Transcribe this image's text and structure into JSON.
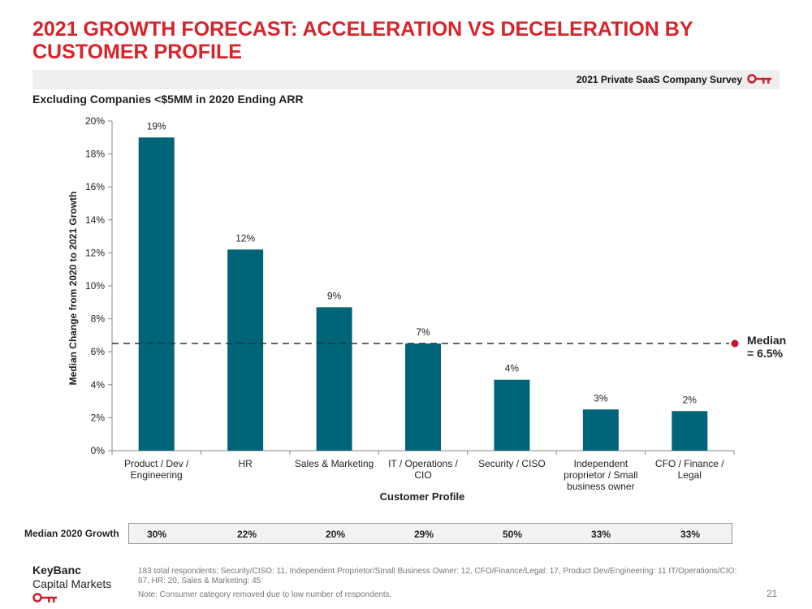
{
  "title": "2021 GROWTH FORECAST: ACCELERATION VS DECELERATION BY CUSTOMER PROFILE",
  "survey_label": "2021 Private SaaS Company Survey",
  "subtitle": "Excluding Companies <$5MM in 2020 Ending ARR",
  "colors": {
    "title": "#d8232a",
    "bar": "#006479",
    "median_dot": "#c8102e",
    "brand_red": "#cc1f2f"
  },
  "chart_data": {
    "type": "bar",
    "categories": [
      [
        "Product / Dev /",
        "Engineering"
      ],
      [
        "HR"
      ],
      [
        "Sales & Marketing"
      ],
      [
        "IT / Operations /",
        "CIO"
      ],
      [
        "Security / CISO"
      ],
      [
        "Independent",
        "proprietor / Small",
        "business owner"
      ],
      [
        "CFO / Finance /",
        "Legal"
      ]
    ],
    "values": [
      19,
      12.2,
      8.7,
      6.5,
      4.3,
      2.5,
      2.4
    ],
    "data_labels": [
      "19%",
      "12%",
      "9%",
      "7%",
      "4%",
      "3%",
      "2%"
    ],
    "ylim": [
      0,
      20
    ],
    "yticks": [
      "0%",
      "2%",
      "4%",
      "6%",
      "8%",
      "10%",
      "12%",
      "14%",
      "16%",
      "18%",
      "20%"
    ],
    "xlabel": "Customer Profile",
    "ylabel": "Median Change from 2020 to 2021 Growth",
    "median": {
      "value": 6.5,
      "label_line1": "Median",
      "label_line2": "= 6.5%"
    }
  },
  "median_2020": {
    "label": "Median 2020 Growth",
    "values": [
      "30%",
      "22%",
      "20%",
      "29%",
      "50%",
      "33%",
      "33%"
    ]
  },
  "footer": {
    "brand_line1": "KeyBanc",
    "brand_line2": "Capital Markets",
    "respondents": "183 total respondents; Security/CISO: 11, Independent Proprietor/Small Business Owner: 12, CFO/Finance/Legal: 17, Product Dev/Engineering: 11 IT/Operations/CIO: 67, HR: 20, Sales & Marketing: 45",
    "note": "Note: Consumer category removed due to low number of respondents.",
    "page_number": "21"
  }
}
